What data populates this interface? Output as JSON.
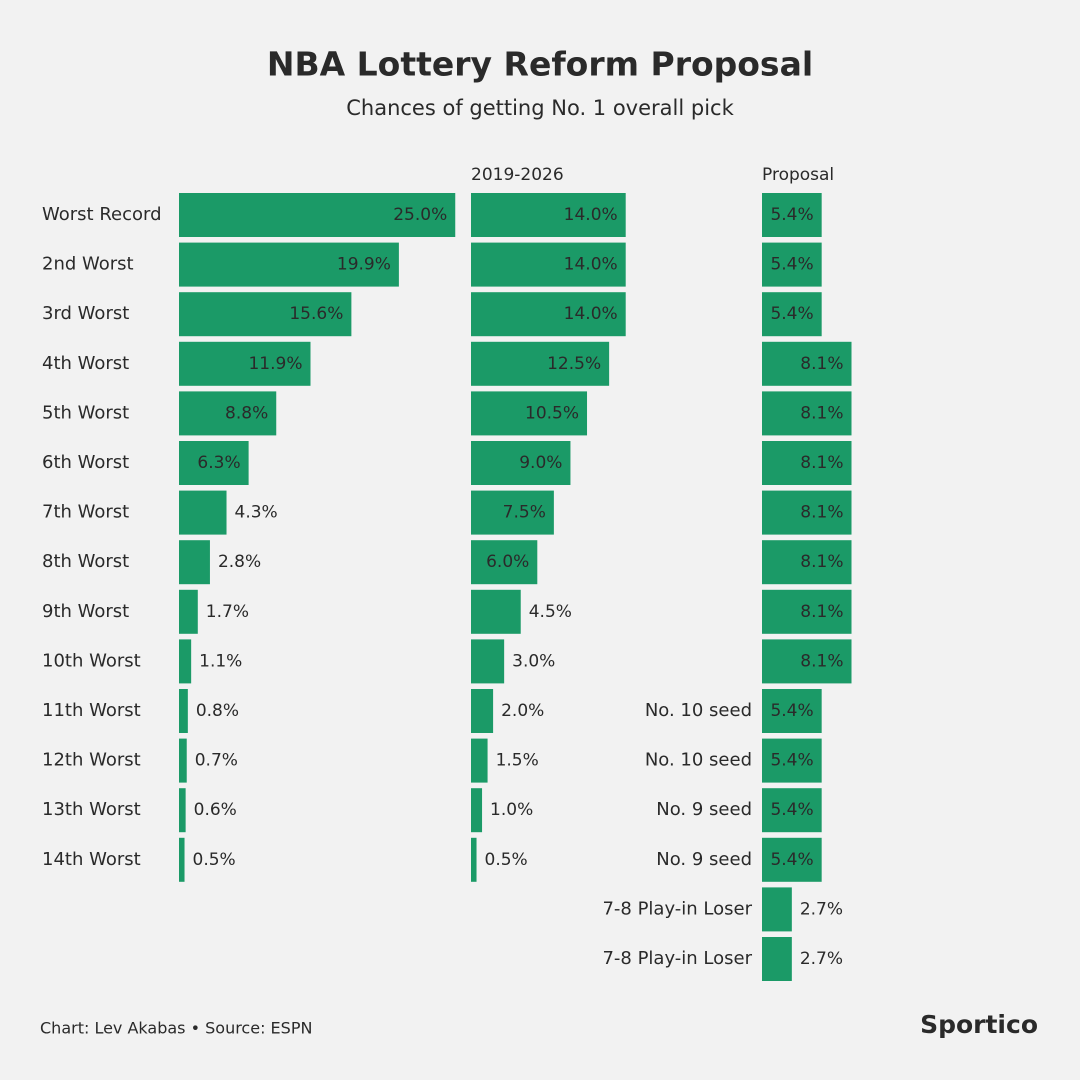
{
  "title": "NBA Lottery Reform Proposal",
  "subtitle": "Chances of getting No. 1 overall pick",
  "source": "Chart: Lev Akabas • Source: ESPN",
  "brand": "Sportico",
  "chart_data": [
    {
      "type": "bar",
      "orientation": "horizontal",
      "color": "#1b9a67",
      "categories": [
        "Worst Record",
        "2nd Worst",
        "3rd Worst",
        "4th Worst",
        "5th Worst",
        "6th Worst",
        "7th Worst",
        "8th Worst",
        "9th Worst",
        "10th Worst",
        "11th Worst",
        "12th Worst",
        "13th Worst",
        "14th Worst"
      ],
      "values": [
        25.0,
        19.9,
        15.6,
        11.9,
        8.8,
        6.3,
        4.3,
        2.8,
        1.7,
        1.1,
        0.8,
        0.7,
        0.6,
        0.5
      ],
      "value_labels": [
        "25.0%",
        "19.9%",
        "15.6%",
        "11.9%",
        "8.8%",
        "6.3%",
        "4.3%",
        "2.8%",
        "1.7%",
        "1.1%",
        "0.8%",
        "0.7%",
        "0.6%",
        "0.5%"
      ]
    },
    {
      "type": "bar",
      "orientation": "horizontal",
      "color": "#1b9a67",
      "title": "2019-2026",
      "values": [
        14.0,
        14.0,
        14.0,
        12.5,
        10.5,
        9.0,
        7.5,
        6.0,
        4.5,
        3.0,
        2.0,
        1.5,
        1.0,
        0.5
      ],
      "value_labels": [
        "14.0%",
        "14.0%",
        "14.0%",
        "12.5%",
        "10.5%",
        "9.0%",
        "7.5%",
        "6.0%",
        "4.5%",
        "3.0%",
        "2.0%",
        "1.5%",
        "1.0%",
        "0.5%"
      ]
    },
    {
      "type": "bar",
      "orientation": "horizontal",
      "color": "#1b9a67",
      "title": "Proposal",
      "categories": [
        null,
        null,
        null,
        null,
        null,
        null,
        null,
        null,
        null,
        null,
        "No. 10 seed",
        "No. 10 seed",
        "No. 9 seed",
        "No. 9 seed",
        "7-8 Play-in Loser",
        "7-8 Play-in Loser"
      ],
      "values": [
        5.4,
        5.4,
        5.4,
        8.1,
        8.1,
        8.1,
        8.1,
        8.1,
        8.1,
        8.1,
        5.4,
        5.4,
        5.4,
        5.4,
        2.7,
        2.7
      ],
      "value_labels": [
        "5.4%",
        "5.4%",
        "5.4%",
        "8.1%",
        "8.1%",
        "8.1%",
        "8.1%",
        "8.1%",
        "8.1%",
        "8.1%",
        "5.4%",
        "5.4%",
        "5.4%",
        "5.4%",
        "2.7%",
        "2.7%"
      ]
    }
  ]
}
